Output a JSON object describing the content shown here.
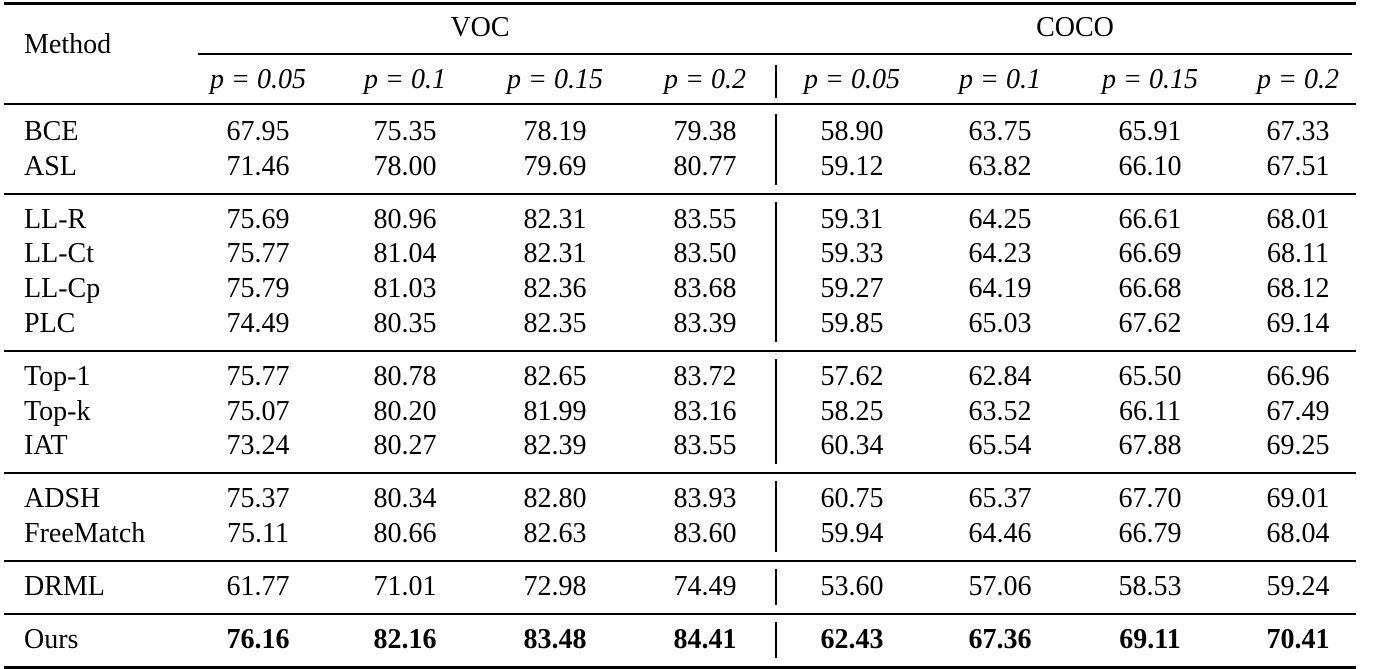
{
  "table": {
    "header": {
      "method": "Method",
      "groups": [
        "VOC",
        "COCO"
      ],
      "columns": [
        "p = 0.05",
        "p = 0.1",
        "p = 0.15",
        "p = 0.2",
        "p = 0.05",
        "p = 0.1",
        "p = 0.15",
        "p = 0.2"
      ]
    },
    "row_groups": [
      {
        "rows": [
          {
            "method": "BCE",
            "values": [
              "67.95",
              "75.35",
              "78.19",
              "79.38",
              "58.90",
              "63.75",
              "65.91",
              "67.33"
            ]
          },
          {
            "method": "ASL",
            "values": [
              "71.46",
              "78.00",
              "79.69",
              "80.77",
              "59.12",
              "63.82",
              "66.10",
              "67.51"
            ]
          }
        ]
      },
      {
        "rows": [
          {
            "method": "LL-R",
            "values": [
              "75.69",
              "80.96",
              "82.31",
              "83.55",
              "59.31",
              "64.25",
              "66.61",
              "68.01"
            ]
          },
          {
            "method": "LL-Ct",
            "values": [
              "75.77",
              "81.04",
              "82.31",
              "83.50",
              "59.33",
              "64.23",
              "66.69",
              "68.11"
            ]
          },
          {
            "method": "LL-Cp",
            "values": [
              "75.79",
              "81.03",
              "82.36",
              "83.68",
              "59.27",
              "64.19",
              "66.68",
              "68.12"
            ]
          },
          {
            "method": "PLC",
            "values": [
              "74.49",
              "80.35",
              "82.35",
              "83.39",
              "59.85",
              "65.03",
              "67.62",
              "69.14"
            ]
          }
        ]
      },
      {
        "rows": [
          {
            "method": "Top-1",
            "values": [
              "75.77",
              "80.78",
              "82.65",
              "83.72",
              "57.62",
              "62.84",
              "65.50",
              "66.96"
            ]
          },
          {
            "method": "Top-k",
            "values": [
              "75.07",
              "80.20",
              "81.99",
              "83.16",
              "58.25",
              "63.52",
              "66.11",
              "67.49"
            ]
          },
          {
            "method": "IAT",
            "values": [
              "73.24",
              "80.27",
              "82.39",
              "83.55",
              "60.34",
              "65.54",
              "67.88",
              "69.25"
            ]
          }
        ]
      },
      {
        "rows": [
          {
            "method": "ADSH",
            "values": [
              "75.37",
              "80.34",
              "82.80",
              "83.93",
              "60.75",
              "65.37",
              "67.70",
              "69.01"
            ]
          },
          {
            "method": "FreeMatch",
            "values": [
              "75.11",
              "80.66",
              "82.63",
              "83.60",
              "59.94",
              "64.46",
              "66.79",
              "68.04"
            ]
          }
        ]
      },
      {
        "rows": [
          {
            "method": "DRML",
            "values": [
              "61.77",
              "71.01",
              "72.98",
              "74.49",
              "53.60",
              "57.06",
              "58.53",
              "59.24"
            ]
          }
        ]
      },
      {
        "bold": true,
        "rows": [
          {
            "method": "Ours",
            "values": [
              "76.16",
              "82.16",
              "83.48",
              "84.41",
              "62.43",
              "67.36",
              "69.11",
              "70.41"
            ]
          }
        ]
      }
    ]
  }
}
